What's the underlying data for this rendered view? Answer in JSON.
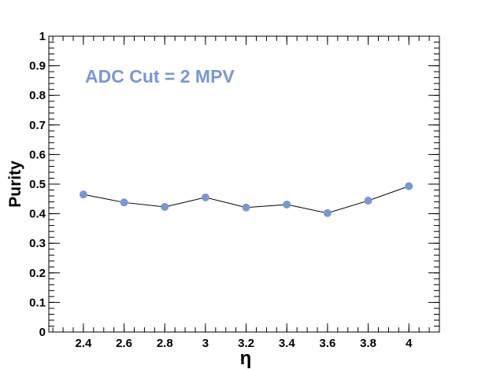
{
  "chart_data": {
    "type": "line",
    "title": "",
    "xlabel": "η",
    "ylabel": "Purity",
    "annotation": "ADC Cut = 2 MPV",
    "xlim": [
      2.23,
      4.15
    ],
    "ylim": [
      0,
      1
    ],
    "x_ticks": [
      2.4,
      2.6,
      2.8,
      3,
      3.2,
      3.4,
      3.6,
      3.8,
      4
    ],
    "x_tick_labels": [
      "2.4",
      "2.6",
      "2.8",
      "3",
      "3.2",
      "3.4",
      "3.6",
      "3.8",
      "4"
    ],
    "y_ticks": [
      0,
      0.1,
      0.2,
      0.3,
      0.4,
      0.5,
      0.6,
      0.7,
      0.8,
      0.9,
      1
    ],
    "y_tick_labels": [
      "0",
      "0.1",
      "0.2",
      "0.3",
      "0.4",
      "0.5",
      "0.6",
      "0.7",
      "0.8",
      "0.9",
      "1"
    ],
    "grid": false,
    "colors": {
      "marker": "#7b97d0",
      "line": "#000000",
      "annotation": "#7b97d0"
    },
    "series": [
      {
        "x": [
          2.4,
          2.6,
          2.8,
          3,
          3.2,
          3.4,
          3.6,
          3.8,
          4
        ],
        "y": [
          0.465,
          0.438,
          0.423,
          0.455,
          0.421,
          0.431,
          0.402,
          0.444,
          0.493
        ]
      }
    ]
  }
}
